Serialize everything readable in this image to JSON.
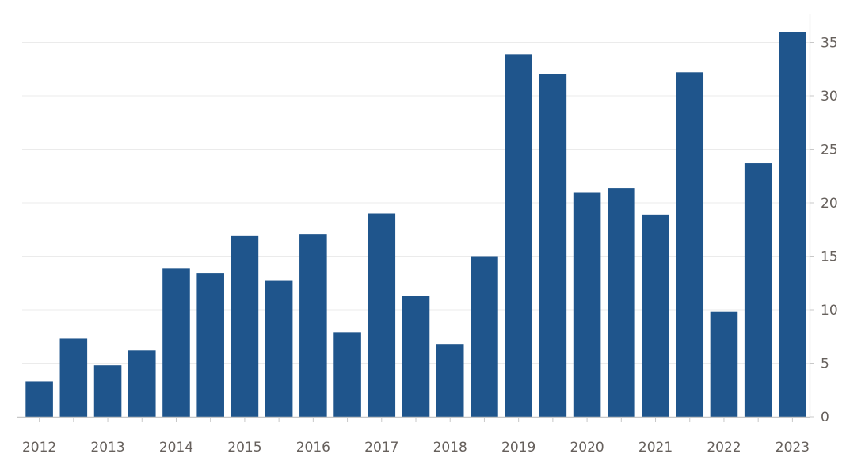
{
  "chart_data": {
    "type": "bar",
    "title": "",
    "xlabel": "",
    "ylabel": "",
    "x_tick_labels": [
      "2012",
      "2013",
      "2014",
      "2015",
      "2016",
      "2017",
      "2018",
      "2019",
      "2020",
      "2021",
      "2022",
      "2023"
    ],
    "y_tick_labels": [
      "0",
      "5",
      "10",
      "15",
      "20",
      "25",
      "30",
      "35"
    ],
    "ylim": [
      0,
      36
    ],
    "y_axis_side": "right",
    "grid": true,
    "bar_color": "#1f558c",
    "grid_color": "#ebebeb",
    "axis_color": "#c8c8c8",
    "values": [
      3.3,
      7.3,
      4.8,
      6.2,
      13.9,
      13.4,
      16.9,
      12.7,
      17.1,
      7.9,
      19.0,
      11.3,
      6.8,
      15.0,
      33.9,
      32.0,
      21.0,
      21.4,
      18.9,
      32.2,
      9.8,
      23.7,
      36.0
    ]
  }
}
